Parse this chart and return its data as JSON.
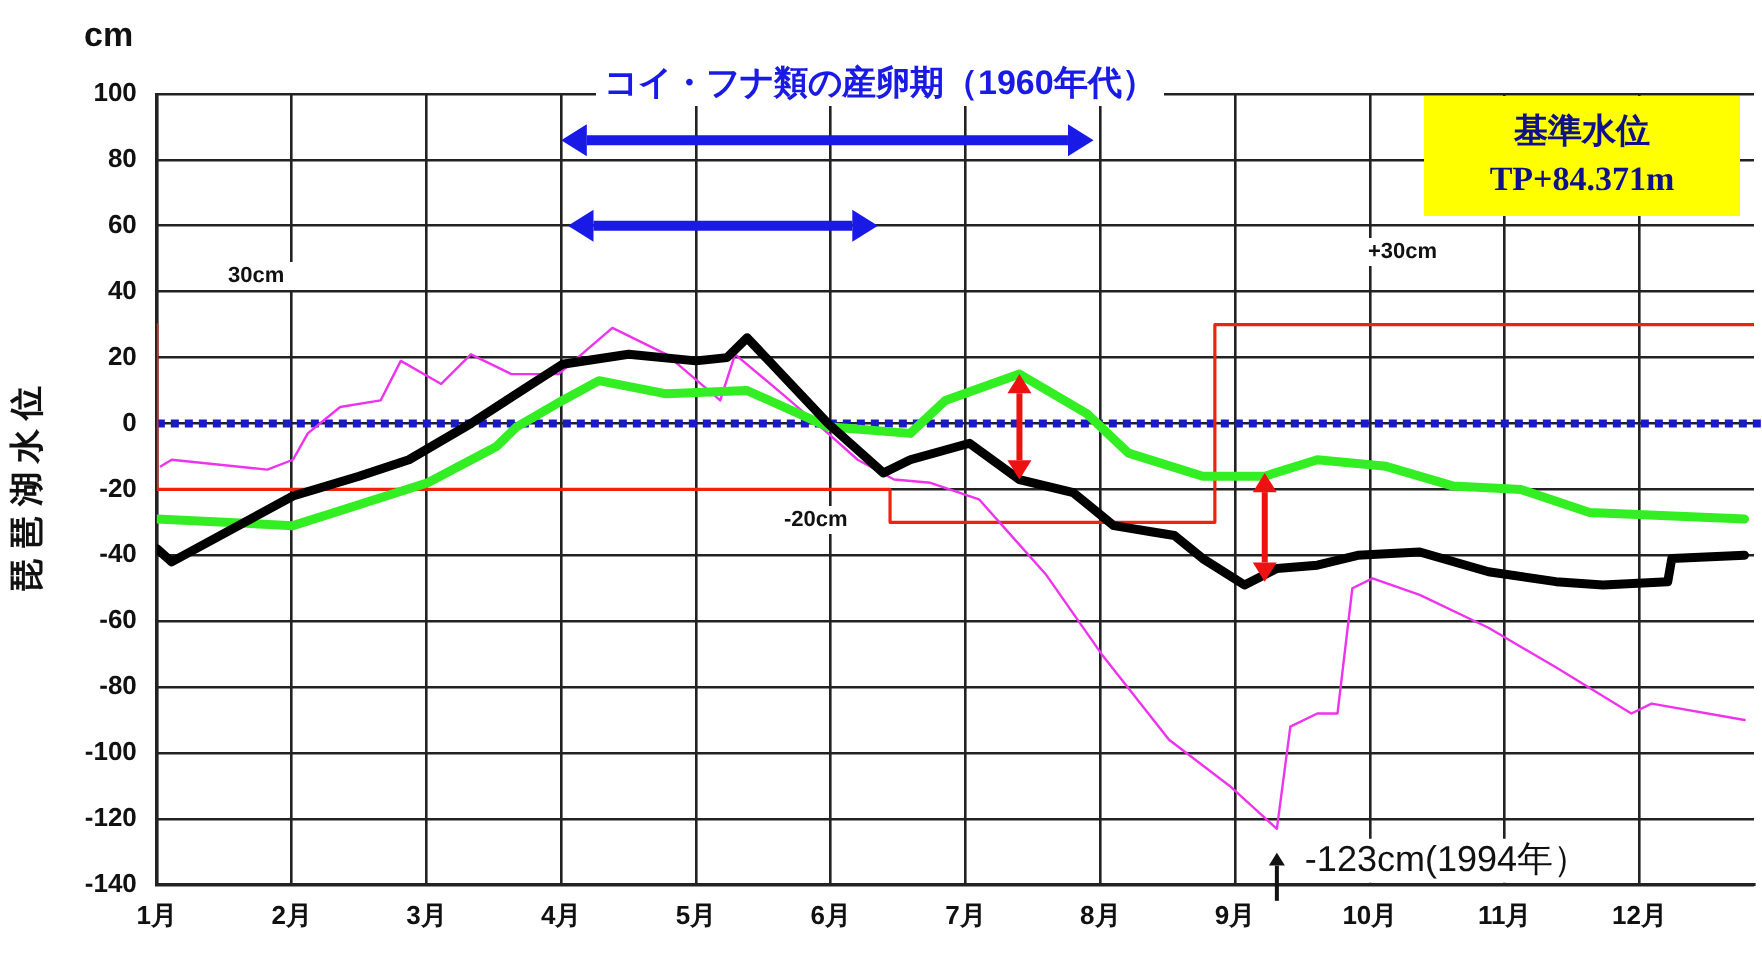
{
  "chart_data": {
    "type": "line",
    "ylabel": "琵 琶 湖 水 位",
    "xlim": [
      1,
      12.85
    ],
    "xticks": [
      {
        "value": 1,
        "label": "1月"
      },
      {
        "value": 2,
        "label": "2月"
      },
      {
        "value": 3,
        "label": "3月"
      },
      {
        "value": 4,
        "label": "4月"
      },
      {
        "value": 5,
        "label": "5月"
      },
      {
        "value": 6,
        "label": "6月"
      },
      {
        "value": 7,
        "label": "7月"
      },
      {
        "value": 8,
        "label": "8月"
      },
      {
        "value": 9,
        "label": "9月"
      },
      {
        "value": 10,
        "label": "10月"
      },
      {
        "value": 11,
        "label": "11月"
      },
      {
        "value": 12,
        "label": "12月"
      }
    ],
    "ylim": [
      -140,
      100
    ],
    "yticks": [
      -140,
      -120,
      -100,
      -80,
      -60,
      -40,
      -20,
      0,
      20,
      40,
      60,
      80,
      100
    ],
    "grid": true,
    "marker": "none",
    "line_style": "solid",
    "series": [
      {
        "color": "#000000",
        "x": [
          1,
          1.11,
          2.01,
          2.5,
          2.87,
          3.33,
          4.01,
          4.5,
          5,
          5.23,
          5.38,
          5.98,
          6.39,
          6.59,
          7.03,
          7.4,
          7.8,
          8.1,
          8.4,
          8.55,
          8.76,
          9.07,
          9.31,
          9.61,
          9.91,
          10.37,
          10.88,
          11.38,
          11.73,
          12.21,
          12.24,
          12.78
        ],
        "values": [
          -38,
          -42,
          -22,
          -16,
          -11,
          0,
          18,
          21,
          19,
          20,
          26,
          0,
          -15,
          -11,
          -6,
          -17,
          -21,
          -31,
          -33,
          -34,
          -41,
          -49,
          -44,
          -43,
          -40,
          -39,
          -45,
          -48,
          -49,
          -48,
          -41,
          -40
        ]
      },
      {
        "color": "#33ee22",
        "x": [
          1,
          2.01,
          3.01,
          3.52,
          3.67,
          4.01,
          4.28,
          4.78,
          5.38,
          5.98,
          6.59,
          6.85,
          7.4,
          7.9,
          8.21,
          8.76,
          9.22,
          9.61,
          10.12,
          10.62,
          11.12,
          11.63,
          12.78
        ],
        "values": [
          -29,
          -31,
          -18,
          -7,
          -1,
          7,
          13,
          9,
          10,
          -1,
          -3,
          7,
          15,
          3,
          -9,
          -16,
          -16,
          -11,
          -13,
          -19,
          -20,
          -27,
          -29
        ]
      },
      {
        "color": "#ee33ee",
        "x": [
          1.03,
          1.11,
          1.82,
          2.01,
          2.12,
          2.36,
          2.66,
          2.81,
          3.11,
          3.33,
          3.63,
          3.98,
          4.38,
          4.78,
          5.18,
          5.29,
          5.64,
          5.98,
          6.2,
          6.47,
          6.74,
          7.1,
          7.6,
          8.01,
          8.51,
          8.96,
          9.31,
          9.41,
          9.61,
          9.76,
          9.87,
          10.02,
          10.37,
          10.88,
          11.38,
          11.94,
          12.09,
          12.78
        ],
        "values": [
          -13,
          -11,
          -14,
          -11,
          -3,
          5,
          7,
          19,
          12,
          21,
          15,
          15,
          29,
          21,
          7,
          21,
          9,
          -3,
          -11,
          -17,
          -18,
          -23,
          -46,
          -70,
          -96,
          -110,
          -123,
          -92,
          -88,
          -88,
          -50,
          -47,
          -52,
          -62,
          -74,
          -88,
          -85,
          -90
        ]
      },
      {
        "type": "step",
        "color": "#ee2211",
        "x": [
          1,
          6.44,
          8.85,
          10.37,
          12.85
        ],
        "values": [
          30,
          -20,
          -30,
          30,
          30
        ]
      }
    ],
    "ref_lines": [
      {
        "axis": "y",
        "value": 0,
        "color": "#1a1acc",
        "line_style": "dotted"
      }
    ],
    "annotations": [
      "コイ・フナ類の産卵期（1960年代）",
      "基準水位 TP+84.371m",
      "cm",
      "30cm",
      "-20cm",
      "+30cm",
      {
        "text": "-123cm(1994年）",
        "x": 9.31,
        "y": -123
      }
    ]
  }
}
